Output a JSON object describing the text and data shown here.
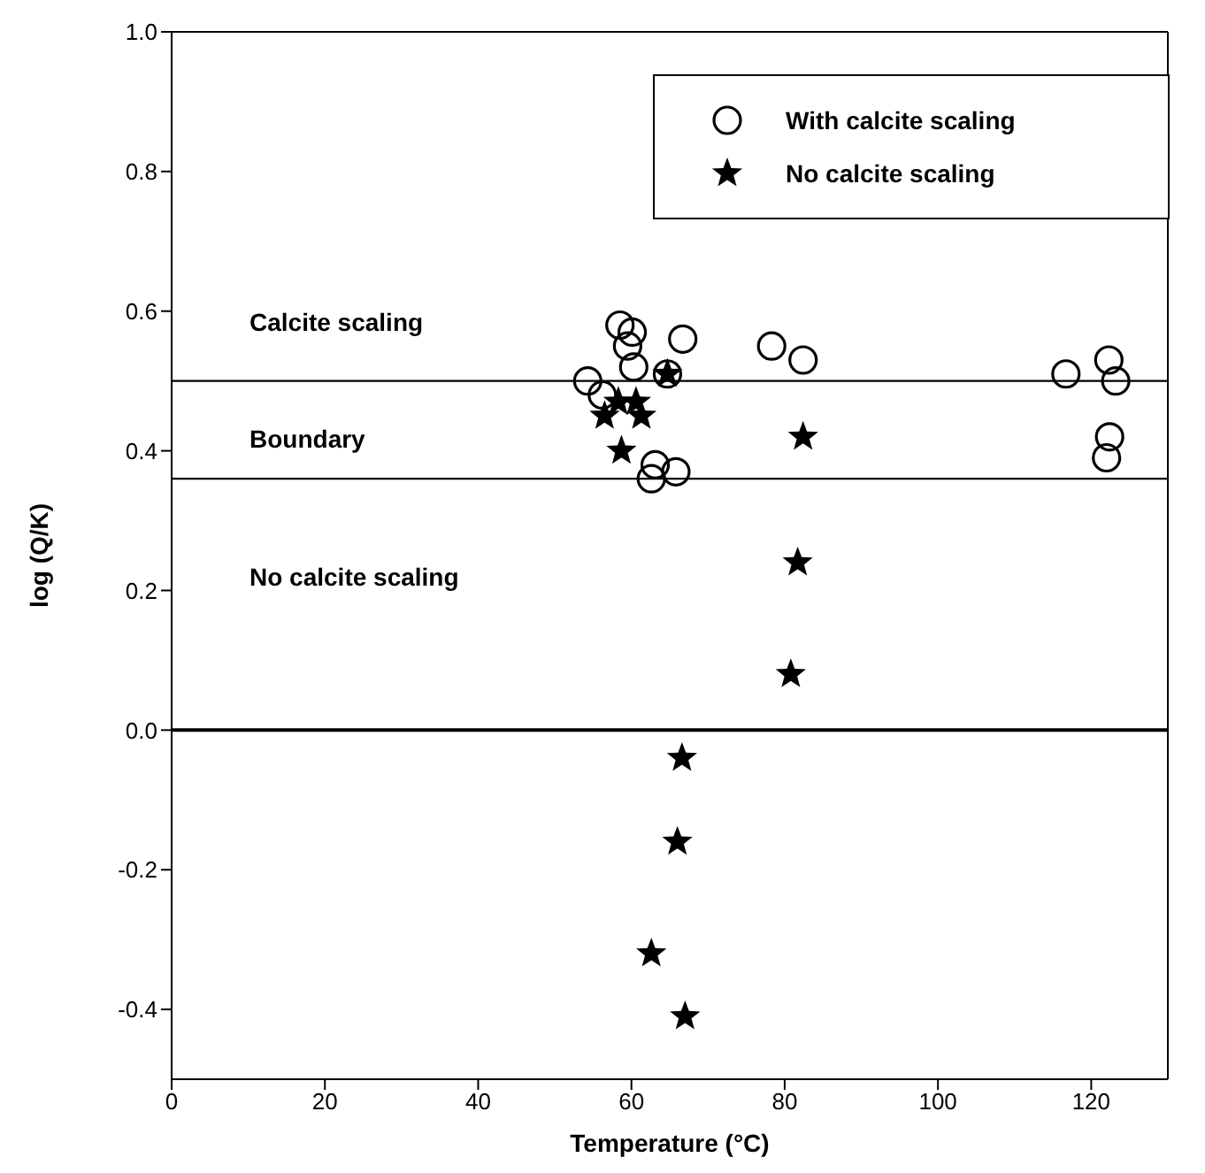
{
  "chart_data": {
    "type": "scatter",
    "xlabel": "Temperature (°C)",
    "ylabel": "log (Q/K)",
    "xlim": [
      0,
      130
    ],
    "xticks": [
      0,
      20,
      40,
      60,
      80,
      100,
      120
    ],
    "ylim": [
      -0.5,
      1.0
    ],
    "yticks": [
      {
        "value": 1,
        "label": "1.0"
      },
      {
        "value": 0.8,
        "label": "0.8"
      },
      {
        "value": 0.6,
        "label": "0.6"
      },
      {
        "value": 0.4,
        "label": "0.4"
      },
      {
        "value": 0.2,
        "label": "0.2"
      },
      {
        "value": 0,
        "label": "0.0"
      },
      {
        "value": -0.2,
        "label": "-0.2"
      },
      {
        "value": -0.4,
        "label": "-0.4"
      }
    ],
    "legend": "top right",
    "grid": false,
    "series": [
      {
        "name": "With calcite scaling",
        "color": "#000000",
        "marker": "circle",
        "x": [
          58.5,
          60.1,
          59.5,
          60.3,
          66.7,
          54.3,
          56.2,
          64.7,
          63.1,
          62.6,
          65.8,
          78.3,
          82.4,
          116.7,
          122.3,
          123.2,
          122.4,
          122.0
        ],
        "values": [
          0.58,
          0.57,
          0.55,
          0.52,
          0.56,
          0.5,
          0.48,
          0.51,
          0.38,
          0.36,
          0.37,
          0.55,
          0.53,
          0.51,
          0.53,
          0.5,
          0.42,
          0.39
        ]
      },
      {
        "name": "No calcite scaling",
        "color": "#000000",
        "marker": "star",
        "x": [
          58.3,
          60.6,
          56.5,
          61.3,
          58.7,
          64.7,
          82.4,
          81.7,
          80.8,
          66.6,
          66.0,
          62.6,
          67.0
        ],
        "values": [
          0.47,
          0.47,
          0.45,
          0.45,
          0.4,
          0.51,
          0.42,
          0.24,
          0.08,
          -0.04,
          -0.16,
          -0.32,
          -0.41
        ]
      }
    ],
    "ref_lines": [
      {
        "axis": "y",
        "value": 0.5,
        "color": "#000000"
      },
      {
        "axis": "y",
        "value": 0.36,
        "color": "#000000"
      },
      {
        "axis": "y",
        "value": 0,
        "color": "#000000"
      }
    ],
    "annotations": [
      "Calcite scaling",
      "Boundary",
      "No calcite scaling"
    ]
  }
}
